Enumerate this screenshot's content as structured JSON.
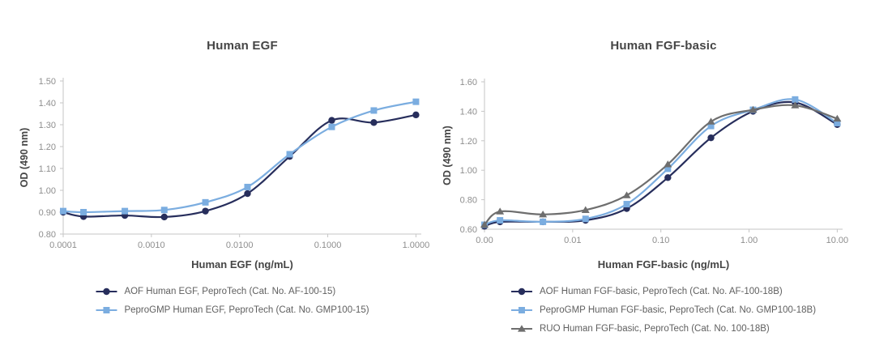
{
  "figure": {
    "background_color": "#ffffff",
    "shared_ylabel": "OD (490 nm)"
  },
  "colors": {
    "navy_series": "#272e5c",
    "lightblue_series": "#7bade0",
    "gray_series": "#6e6e6e",
    "axis_line": "#c6c6c6",
    "tick_text": "#8e8e8e",
    "title_text": "#454545",
    "legend_text": "#5f5f5f"
  },
  "chart_data": [
    {
      "type": "line",
      "title": "Human EGF",
      "xlabel": "Human EGF (ng/mL)",
      "ylabel": "OD (490 nm)",
      "x_scale": "log",
      "grid": false,
      "legend_position": "bottom",
      "xlim": [
        0.0001,
        1.15
      ],
      "ylim": [
        0.8,
        1.5
      ],
      "x_ticks": [
        0.0001,
        0.001,
        0.01,
        0.1,
        1.0
      ],
      "x_tick_labels": [
        "0.0001",
        "0.0010",
        "0.0100",
        "0.1000",
        "1.0000"
      ],
      "y_ticks": [
        0.8,
        0.9,
        1.0,
        1.1,
        1.2,
        1.3,
        1.4,
        1.5
      ],
      "y_tick_labels": [
        "0.80",
        "0.90",
        "1.00",
        "1.10",
        "1.20",
        "1.30",
        "1.40",
        "1.50"
      ],
      "x": [
        0.0001,
        0.00017,
        0.0005,
        0.0014,
        0.0041,
        0.0123,
        0.037,
        0.111,
        0.333,
        1.0
      ],
      "series": [
        {
          "name": "AOF Human EGF, PeproTech (Cat. No. AF-100-15)",
          "marker": "circle",
          "color": "#272e5c",
          "values": [
            0.9,
            0.88,
            0.885,
            0.878,
            0.905,
            0.985,
            1.155,
            1.32,
            1.31,
            1.345
          ]
        },
        {
          "name": "PeproGMP Human EGF, PeproTech (Cat. No. GMP100-15)",
          "marker": "square",
          "color": "#7bade0",
          "values": [
            0.905,
            0.9,
            0.905,
            0.91,
            0.945,
            1.015,
            1.165,
            1.29,
            1.365,
            1.405
          ]
        }
      ]
    },
    {
      "type": "line",
      "title": "Human FGF-basic",
      "xlabel": "Human FGF-basic (ng/mL)",
      "ylabel": "OD (490 nm)",
      "x_scale": "log",
      "grid": false,
      "legend_position": "bottom",
      "xlim": [
        0.001,
        11.5
      ],
      "ylim": [
        0.6,
        1.6
      ],
      "x_ticks": [
        0.001,
        0.01,
        0.1,
        1.0,
        10.0
      ],
      "x_tick_labels": [
        "0.00",
        "0.01",
        "0.10",
        "1.00",
        "10.00"
      ],
      "y_ticks": [
        0.6,
        0.8,
        1.0,
        1.2,
        1.4,
        1.6
      ],
      "y_tick_labels": [
        "0.60",
        "0.80",
        "1.00",
        "1.20",
        "1.40",
        "1.60"
      ],
      "x": [
        0,
        0.0015,
        0.0046,
        0.014,
        0.041,
        0.12,
        0.37,
        1.11,
        3.33,
        10
      ],
      "series": [
        {
          "name": "AOF Human FGF-basic, PeproTech (Cat. No. AF-100-18B)",
          "marker": "circle",
          "color": "#272e5c",
          "values": [
            0.62,
            0.65,
            0.65,
            0.66,
            0.74,
            0.95,
            1.22,
            1.4,
            1.46,
            1.31
          ]
        },
        {
          "name": "PeproGMP Human FGF-basic, PeproTech (Cat. No. GMP100-18B)",
          "marker": "square",
          "color": "#7bade0",
          "values": [
            0.63,
            0.66,
            0.65,
            0.67,
            0.77,
            1.01,
            1.3,
            1.41,
            1.48,
            1.32
          ]
        },
        {
          "name": "RUO Human FGF-basic, PeproTech (Cat. No. 100-18B)",
          "marker": "triangle",
          "color": "#6e6e6e",
          "values": [
            0.63,
            0.72,
            0.7,
            0.73,
            0.83,
            1.04,
            1.33,
            1.41,
            1.44,
            1.35
          ]
        }
      ]
    }
  ]
}
